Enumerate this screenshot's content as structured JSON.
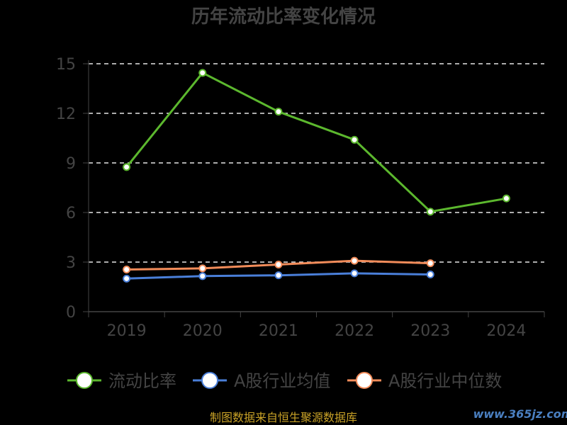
{
  "chart_data": {
    "type": "line",
    "title": "历年流动比率变化情况",
    "categories": [
      "2019",
      "2020",
      "2021",
      "2022",
      "2023",
      "2024"
    ],
    "y_ticks": [
      "0",
      "3",
      "6",
      "9",
      "12",
      "15"
    ],
    "ylim": [
      0,
      15
    ],
    "grid": true,
    "legend_position": "bottom",
    "series": [
      {
        "name": "流动比率",
        "color": "#5cb82e",
        "values": [
          8.75,
          14.45,
          12.1,
          10.4,
          6.05,
          6.85
        ]
      },
      {
        "name": "A股行业均值",
        "color": "#4a7fd9",
        "values": [
          2.0,
          2.15,
          2.2,
          2.32,
          2.25,
          null
        ]
      },
      {
        "name": "A股行业中位数",
        "color": "#f28c5a",
        "values": [
          2.55,
          2.62,
          2.85,
          3.08,
          2.93,
          null
        ]
      }
    ]
  },
  "footer": {
    "source": "制图数据来自恒生聚源数据库",
    "watermark": "www.365jz.com"
  }
}
